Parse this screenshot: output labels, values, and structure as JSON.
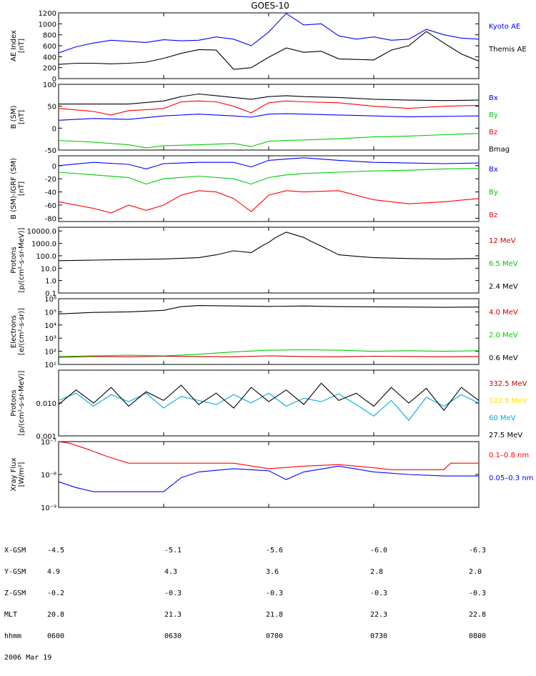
{
  "title": "GOES-10",
  "chart_data": [
    {
      "type": "line",
      "ylabel": [
        "AE Index",
        "[nT]"
      ],
      "ylim": [
        0,
        1200
      ],
      "yticks": [
        "0",
        "200",
        "400",
        "600",
        "800",
        "1000",
        "1200"
      ],
      "series": [
        {
          "name": "Kyoto AE",
          "color": "#0000ff",
          "x": [
            0,
            5,
            10,
            15,
            20,
            25,
            30,
            35,
            40,
            45,
            50,
            55,
            60,
            65,
            70,
            75,
            80,
            85,
            90,
            95,
            100,
            105,
            110,
            115,
            120
          ],
          "y": [
            470,
            580,
            650,
            700,
            680,
            660,
            710,
            690,
            700,
            760,
            720,
            600,
            850,
            1190,
            980,
            1000,
            780,
            720,
            760,
            700,
            720,
            900,
            800,
            740,
            720
          ]
        },
        {
          "name": "Themis AE",
          "color": "#000000",
          "x": [
            0,
            5,
            10,
            15,
            20,
            25,
            30,
            35,
            40,
            45,
            50,
            55,
            60,
            65,
            70,
            75,
            80,
            85,
            90,
            95,
            100,
            105,
            110,
            115,
            120
          ],
          "y": [
            260,
            280,
            280,
            270,
            280,
            300,
            370,
            460,
            530,
            520,
            170,
            200,
            390,
            560,
            480,
            500,
            360,
            350,
            340,
            520,
            600,
            860,
            650,
            450,
            320
          ]
        }
      ]
    },
    {
      "type": "line",
      "ylabel": [
        "B (SM)",
        "[nT]"
      ],
      "ylim": [
        -50,
        100
      ],
      "yticks": [
        "-50",
        "0",
        "50",
        "100"
      ],
      "series": [
        {
          "name": "Bx",
          "color": "#0000ff",
          "x": [
            0,
            10,
            20,
            30,
            40,
            45,
            50,
            55,
            60,
            65,
            70,
            80,
            90,
            100,
            110,
            120
          ],
          "y": [
            18,
            22,
            20,
            28,
            32,
            30,
            28,
            25,
            32,
            33,
            32,
            30,
            28,
            26,
            27,
            28
          ]
        },
        {
          "name": "By",
          "color": "#00cc00",
          "x": [
            0,
            10,
            20,
            25,
            30,
            40,
            50,
            55,
            60,
            65,
            70,
            80,
            90,
            100,
            110,
            120
          ],
          "y": [
            -28,
            -32,
            -38,
            -45,
            -40,
            -38,
            -35,
            -42,
            -30,
            -28,
            -27,
            -24,
            -20,
            -18,
            -15,
            -12
          ]
        },
        {
          "name": "Bz",
          "color": "#ff0000",
          "x": [
            0,
            10,
            15,
            20,
            25,
            30,
            35,
            40,
            45,
            50,
            55,
            60,
            65,
            70,
            80,
            90,
            100,
            110,
            120
          ],
          "y": [
            45,
            38,
            30,
            40,
            42,
            45,
            60,
            62,
            60,
            50,
            35,
            58,
            62,
            60,
            58,
            50,
            45,
            50,
            52
          ]
        },
        {
          "name": "Bmag",
          "color": "#000000",
          "x": [
            0,
            10,
            20,
            30,
            35,
            40,
            45,
            50,
            55,
            60,
            65,
            70,
            80,
            90,
            100,
            110,
            120
          ],
          "y": [
            55,
            55,
            55,
            62,
            72,
            78,
            74,
            70,
            66,
            72,
            74,
            72,
            70,
            66,
            64,
            63,
            64
          ]
        }
      ]
    },
    {
      "type": "line",
      "ylabel": [
        "B (SM)-IGRF (SM)",
        "[nT]"
      ],
      "ylim": [
        -85,
        15
      ],
      "yticks": [
        "-80",
        "-60",
        "-40",
        "-20",
        "0"
      ],
      "series": [
        {
          "name": "Bx",
          "color": "#0000ff",
          "x": [
            0,
            10,
            20,
            25,
            30,
            40,
            50,
            55,
            60,
            65,
            70,
            80,
            90,
            100,
            110,
            120
          ],
          "y": [
            0,
            5,
            2,
            -5,
            3,
            5,
            5,
            -2,
            8,
            10,
            12,
            8,
            5,
            4,
            3,
            4
          ]
        },
        {
          "name": "By",
          "color": "#00cc00",
          "x": [
            0,
            10,
            20,
            25,
            30,
            40,
            50,
            55,
            60,
            65,
            70,
            80,
            90,
            100,
            110,
            120
          ],
          "y": [
            -10,
            -14,
            -18,
            -28,
            -20,
            -16,
            -20,
            -28,
            -18,
            -14,
            -12,
            -10,
            -8,
            -7,
            -5,
            -4
          ]
        },
        {
          "name": "Bz",
          "color": "#ff0000",
          "x": [
            0,
            10,
            15,
            20,
            25,
            30,
            35,
            40,
            45,
            50,
            55,
            60,
            65,
            70,
            80,
            90,
            100,
            110,
            120
          ],
          "y": [
            -55,
            -65,
            -72,
            -60,
            -68,
            -60,
            -45,
            -38,
            -40,
            -50,
            -70,
            -45,
            -38,
            -40,
            -38,
            -52,
            -58,
            -55,
            -50
          ]
        }
      ]
    },
    {
      "type": "line",
      "log": true,
      "ylabel": [
        "Protons",
        "[p/(cm²-s-sr-MeV)]"
      ],
      "ylim": [
        0.1,
        20000
      ],
      "yticks": [
        "0.1",
        "1.0",
        "10.0",
        "100.0",
        "1000.0",
        "10000.0"
      ],
      "yticks_at": [
        0.1,
        1,
        10,
        100,
        1000,
        10000
      ],
      "series": [
        {
          "name": "12 MeV",
          "color": "#cc0000",
          "x": [],
          "y": []
        },
        {
          "name": "6.5 MeV",
          "color": "#00cc00",
          "x": [],
          "y": []
        },
        {
          "name": "2.4 MeV",
          "color": "#000000",
          "x": [
            0,
            10,
            20,
            30,
            40,
            45,
            50,
            55,
            58,
            60,
            62,
            65,
            70,
            72,
            75,
            80,
            85,
            90,
            100,
            110,
            120
          ],
          "y": [
            40,
            45,
            50,
            55,
            70,
            120,
            250,
            180,
            600,
            1200,
            3000,
            8000,
            3000,
            1500,
            600,
            120,
            90,
            70,
            60,
            55,
            60
          ]
        }
      ]
    },
    {
      "type": "line",
      "log": true,
      "ylabel": [
        "Electrons",
        "[e/(cm²-s-sr)]"
      ],
      "ylim": [
        10,
        1000000
      ],
      "yticks": [
        "10¹",
        "10²",
        "10³",
        "10⁴",
        "10⁵",
        "10⁶"
      ],
      "yticks_at": [
        10,
        100,
        1000,
        10000,
        100000,
        1000000
      ],
      "series": [
        {
          "name": "4.0 MeV",
          "color": "#cc0000",
          "x": [
            0,
            10,
            20,
            30,
            40,
            50,
            60,
            70,
            80,
            90,
            100,
            110,
            120
          ],
          "y": [
            35,
            40,
            38,
            42,
            40,
            38,
            45,
            40,
            38,
            42,
            40,
            38,
            40
          ]
        },
        {
          "name": "2.0 MeV",
          "color": "#00cc00",
          "x": [
            0,
            10,
            20,
            30,
            40,
            50,
            60,
            70,
            80,
            90,
            100,
            110,
            120
          ],
          "y": [
            40,
            45,
            50,
            45,
            60,
            90,
            120,
            130,
            120,
            100,
            110,
            100,
            110
          ]
        },
        {
          "name": "0.6 MeV",
          "color": "#000000",
          "x": [
            0,
            10,
            20,
            30,
            35,
            40,
            50,
            60,
            70,
            80,
            90,
            100,
            110,
            120
          ],
          "y": [
            70000,
            90000,
            100000,
            130000,
            250000,
            300000,
            280000,
            260000,
            280000,
            250000,
            240000,
            230000,
            220000,
            230000
          ]
        }
      ]
    },
    {
      "type": "line",
      "log": true,
      "ylabel": [
        "Protons",
        "[p/(cm²-s-sr-MeV)]"
      ],
      "ylim": [
        0.001,
        0.1
      ],
      "yticks": [
        "0.001",
        "0.010"
      ],
      "yticks_at": [
        0.001,
        0.01
      ],
      "series": [
        {
          "name": "332.5 MeV",
          "color": "#cc0000",
          "x": [],
          "y": []
        },
        {
          "name": "122.5 MeV",
          "color": "#ffdd00",
          "x": [],
          "y": []
        },
        {
          "name": "60 MeV",
          "color": "#00aadd",
          "x": [
            0,
            5,
            10,
            15,
            20,
            25,
            30,
            35,
            40,
            45,
            50,
            55,
            60,
            65,
            70,
            75,
            80,
            85,
            90,
            95,
            100,
            105,
            110,
            115,
            120
          ],
          "y": [
            0.012,
            0.02,
            0.008,
            0.018,
            0.011,
            0.02,
            0.007,
            0.016,
            0.012,
            0.009,
            0.018,
            0.01,
            0.02,
            0.008,
            0.014,
            0.011,
            0.019,
            0.009,
            0.004,
            0.012,
            0.003,
            0.015,
            0.008,
            0.018,
            0.01
          ]
        },
        {
          "name": "27.5 MeV",
          "color": "#000000",
          "x": [
            0,
            5,
            10,
            15,
            20,
            25,
            30,
            35,
            40,
            45,
            50,
            55,
            60,
            65,
            70,
            75,
            80,
            85,
            90,
            95,
            100,
            105,
            110,
            115,
            120
          ],
          "y": [
            0.009,
            0.025,
            0.01,
            0.03,
            0.008,
            0.022,
            0.012,
            0.035,
            0.009,
            0.02,
            0.007,
            0.03,
            0.011,
            0.025,
            0.009,
            0.04,
            0.012,
            0.02,
            0.008,
            0.03,
            0.01,
            0.028,
            0.006,
            0.03,
            0.012
          ]
        }
      ]
    },
    {
      "type": "line",
      "log": true,
      "ylabel": [
        "Xray Flux",
        "[W/m²]"
      ],
      "ylim": [
        1e-09,
        1e-07
      ],
      "yticks": [
        "10⁻⁹",
        "10⁻⁸",
        "10⁻⁷"
      ],
      "yticks_at": [
        1e-09,
        1e-08,
        1e-07
      ],
      "series": [
        {
          "name": "0.1–0.8 nm",
          "color": "#ff0000",
          "x": [
            0,
            3,
            8,
            14,
            20,
            40,
            50,
            60,
            70,
            80,
            90,
            95,
            110,
            112,
            120
          ],
          "y": [
            1e-07,
            9e-08,
            6e-08,
            3.5e-08,
            2.2e-08,
            2.2e-08,
            2.2e-08,
            1.5e-08,
            1.8e-08,
            2e-08,
            1.6e-08,
            1.4e-08,
            1.4e-08,
            2.2e-08,
            2.2e-08
          ]
        },
        {
          "name": "0.05–0.3 nm",
          "color": "#0000ff",
          "x": [
            0,
            5,
            10,
            30,
            35,
            40,
            50,
            60,
            65,
            70,
            80,
            90,
            100,
            110,
            120
          ],
          "y": [
            6e-09,
            4e-09,
            3e-09,
            3e-09,
            8e-09,
            1.2e-08,
            1.5e-08,
            1.3e-08,
            7e-09,
            1.2e-08,
            1.8e-08,
            1.2e-08,
            1e-08,
            9e-09,
            9e-09
          ]
        }
      ]
    }
  ],
  "x_axis": {
    "rows": [
      {
        "label": "X-GSM",
        "values": [
          "-4.5",
          "-5.1",
          "-5.6",
          "-6.0",
          "-6.3"
        ]
      },
      {
        "label": "Y-GSM",
        "values": [
          "4.9",
          "4.3",
          "3.6",
          "2.8",
          "2.0"
        ]
      },
      {
        "label": "Z-GSM",
        "values": [
          "-0.2",
          "-0.3",
          "-0.3",
          "-0.3",
          "-0.3"
        ]
      },
      {
        "label": "MLT",
        "values": [
          "20.8",
          "21.3",
          "21.8",
          "22.3",
          "22.8"
        ]
      },
      {
        "label": "hhmm",
        "values": [
          "0600",
          "0630",
          "0700",
          "0730",
          "0800"
        ]
      }
    ],
    "date": "2006 Mar 19"
  }
}
